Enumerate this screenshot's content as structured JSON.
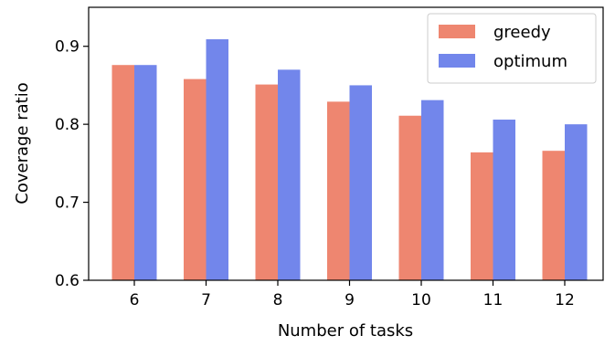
{
  "chart_data": {
    "type": "bar",
    "categories": [
      "6",
      "7",
      "8",
      "9",
      "10",
      "11",
      "12"
    ],
    "series": [
      {
        "name": "greedy",
        "color": "#ee8670",
        "values": [
          0.876,
          0.858,
          0.851,
          0.829,
          0.811,
          0.764,
          0.766
        ]
      },
      {
        "name": "optimum",
        "color": "#7286eb",
        "values": [
          0.876,
          0.909,
          0.87,
          0.85,
          0.831,
          0.806,
          0.8
        ]
      }
    ],
    "xlabel": "Number of tasks",
    "ylabel": "Coverage ratio",
    "ylim": [
      0.6,
      0.95
    ],
    "yticks": [
      0.6,
      0.7,
      0.8,
      0.9
    ],
    "ytick_labels": [
      "0.6",
      "0.7",
      "0.8",
      "0.9"
    ],
    "legend_position": "top-right",
    "grid": false
  }
}
